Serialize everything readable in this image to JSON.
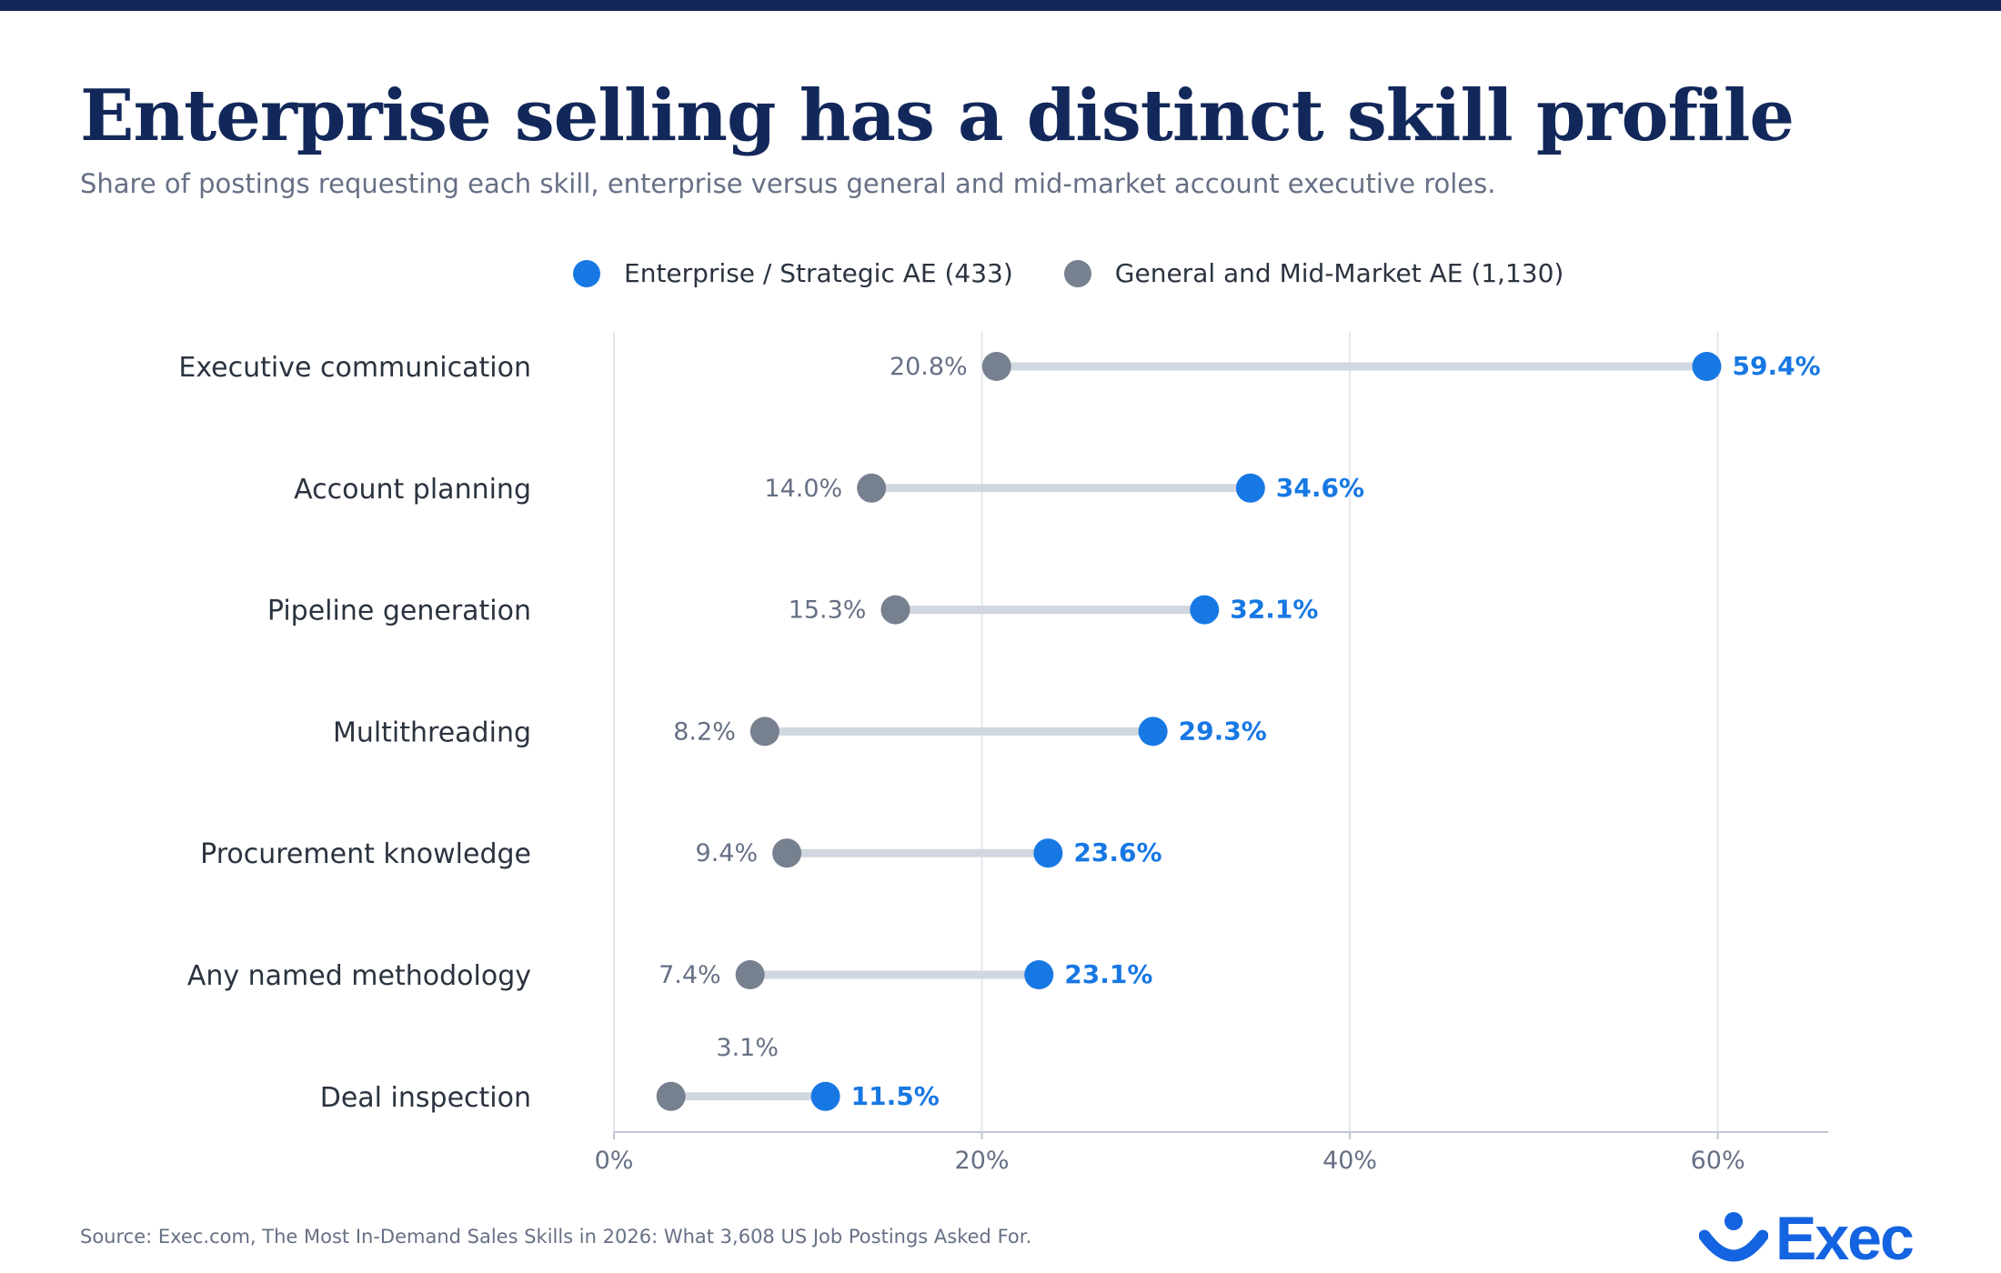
{
  "title": "Enterprise selling has a distinct skill profile",
  "subtitle": "Share of postings requesting each skill, enterprise versus general and mid-market account executive roles.",
  "legend": [
    {
      "label": "Enterprise / Strategic AE (433)",
      "color": "#1778e4"
    },
    {
      "label": "General and Mid-Market AE (1,130)",
      "color": "#77808f"
    }
  ],
  "source": "Source: Exec.com, The Most In-Demand Sales Skills in 2026: What 3,608 US Job Postings Asked For.",
  "logo": {
    "text": "Exec",
    "icon": "smile-icon"
  },
  "colors": {
    "enterprise": "#1778e4",
    "general": "#77808f",
    "connector": "#d1d7e0",
    "grid": "#e4e7ec",
    "axis": "#c0c7d2"
  },
  "chart_data": {
    "type": "dumbbell",
    "categories": [
      "Executive communication",
      "Account planning",
      "Pipeline generation",
      "Multithreading",
      "Procurement knowledge",
      "Any named methodology",
      "Deal inspection"
    ],
    "series": [
      {
        "name": "Enterprise / Strategic AE (433)",
        "values": [
          59.4,
          34.6,
          32.1,
          29.3,
          23.6,
          23.1,
          11.5
        ],
        "labels": [
          "59.4%",
          "34.6%",
          "32.1%",
          "29.3%",
          "23.6%",
          "23.1%",
          "11.5%"
        ]
      },
      {
        "name": "General and Mid-Market AE (1,130)",
        "values": [
          20.8,
          14.0,
          15.3,
          8.2,
          9.4,
          7.4,
          3.1
        ],
        "labels": [
          "20.8%",
          "14.0%",
          "15.3%",
          "8.2%",
          "9.4%",
          "7.4%",
          "3.1%"
        ]
      }
    ],
    "xlim": [
      0,
      66
    ],
    "xticks": [
      0,
      20,
      40,
      60
    ],
    "xtick_labels": [
      "0%",
      "20%",
      "40%",
      "60%"
    ],
    "grid": true,
    "legend_position": "top-center"
  }
}
